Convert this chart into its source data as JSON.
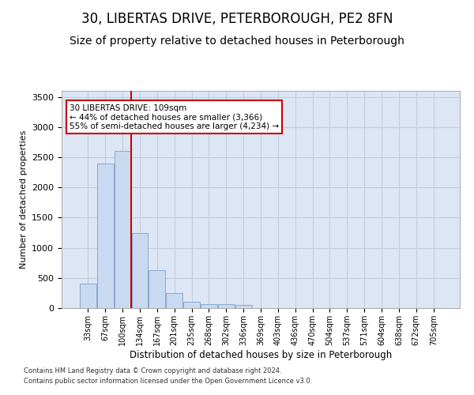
{
  "title": "30, LIBERTAS DRIVE, PETERBOROUGH, PE2 8FN",
  "subtitle": "Size of property relative to detached houses in Peterborough",
  "xlabel": "Distribution of detached houses by size in Peterborough",
  "ylabel": "Number of detached properties",
  "footnote1": "Contains HM Land Registry data © Crown copyright and database right 2024.",
  "footnote2": "Contains public sector information licensed under the Open Government Licence v3.0.",
  "categories": [
    "33sqm",
    "67sqm",
    "100sqm",
    "134sqm",
    "167sqm",
    "201sqm",
    "235sqm",
    "268sqm",
    "302sqm",
    "336sqm",
    "369sqm",
    "403sqm",
    "436sqm",
    "470sqm",
    "504sqm",
    "537sqm",
    "571sqm",
    "604sqm",
    "638sqm",
    "672sqm",
    "705sqm"
  ],
  "values": [
    400,
    2400,
    2600,
    1250,
    630,
    250,
    100,
    70,
    60,
    55,
    0,
    0,
    0,
    0,
    0,
    0,
    0,
    0,
    0,
    0,
    0
  ],
  "bar_color": "#c9d9f0",
  "bar_edgecolor": "#7aa0cc",
  "vline_pos": 2.5,
  "annotation_text": "30 LIBERTAS DRIVE: 109sqm\n← 44% of detached houses are smaller (3,366)\n55% of semi-detached houses are larger (4,234) →",
  "annotation_box_color": "#ffffff",
  "annotation_box_edgecolor": "#cc0000",
  "vline_color": "#cc0000",
  "ylim": [
    0,
    3600
  ],
  "yticks": [
    0,
    500,
    1000,
    1500,
    2000,
    2500,
    3000,
    3500
  ],
  "grid_color": "#c0ccdd",
  "bg_color": "#dde6f5",
  "title_fontsize": 12,
  "subtitle_fontsize": 10
}
